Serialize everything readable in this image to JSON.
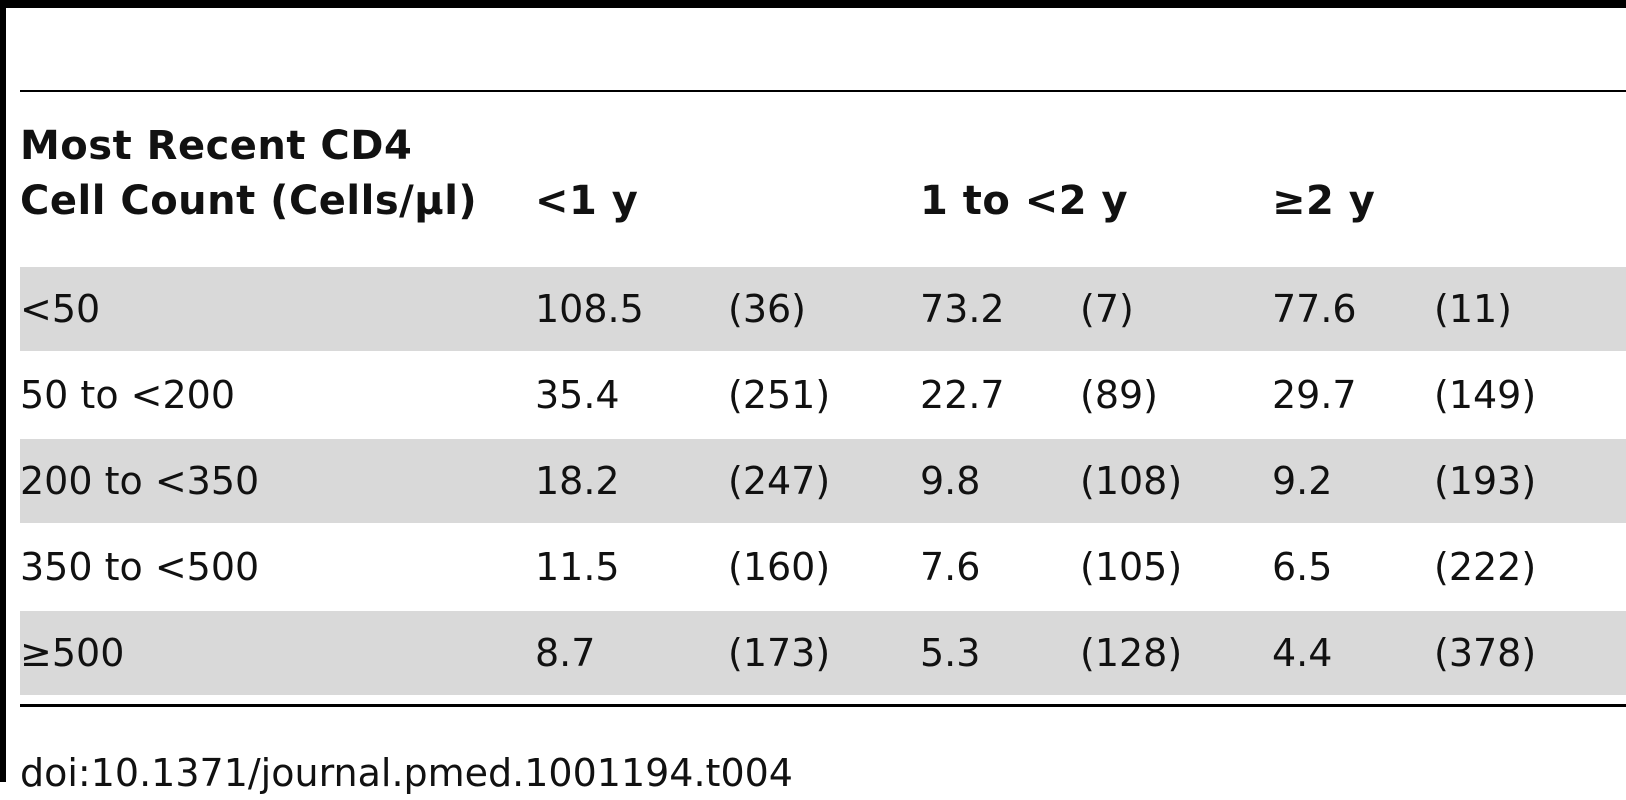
{
  "table": {
    "header": {
      "row_label_line1": "Most Recent CD4",
      "row_label_line2": "Cell Count (Cells/μl)",
      "col1": "<1 y",
      "col2": "1 to <2 y",
      "col3": "≥2 y"
    },
    "rows": [
      {
        "label": "<50",
        "c1_rate": "108.5",
        "c1_n": "(36)",
        "c2_rate": "73.2",
        "c2_n": "(7)",
        "c3_rate": "77.6",
        "c3_n": "(11)"
      },
      {
        "label": "50 to <200",
        "c1_rate": "35.4",
        "c1_n": "(251)",
        "c2_rate": "22.7",
        "c2_n": "(89)",
        "c3_rate": "29.7",
        "c3_n": "(149)"
      },
      {
        "label": "200 to <350",
        "c1_rate": "18.2",
        "c1_n": "(247)",
        "c2_rate": "9.8",
        "c2_n": "(108)",
        "c3_rate": "9.2",
        "c3_n": "(193)"
      },
      {
        "label": "350 to <500",
        "c1_rate": "11.5",
        "c1_n": "(160)",
        "c2_rate": "7.6",
        "c2_n": "(105)",
        "c3_rate": "6.5",
        "c3_n": "(222)"
      },
      {
        "label": "≥500",
        "c1_rate": "8.7",
        "c1_n": "(173)",
        "c2_rate": "5.3",
        "c2_n": "(128)",
        "c3_rate": "4.4",
        "c3_n": "(378)"
      }
    ]
  },
  "footer": {
    "doi": "doi:10.1371/journal.pmed.1001194.t004"
  }
}
